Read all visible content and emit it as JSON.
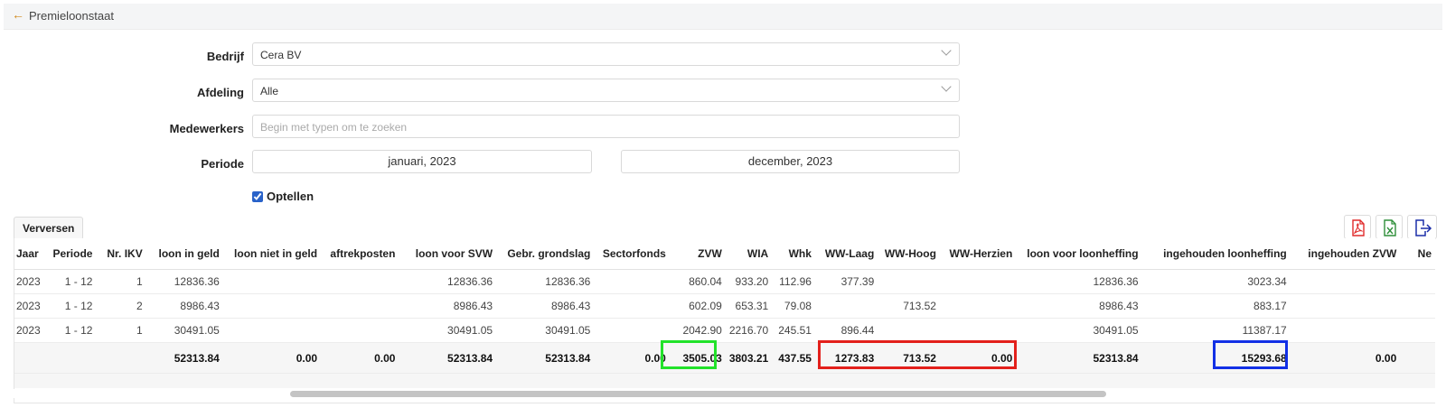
{
  "header": {
    "title": "Premieloonstaat"
  },
  "form": {
    "company_label": "Bedrijf",
    "company_value": "Cera BV",
    "department_label": "Afdeling",
    "department_value": "Alle",
    "employees_label": "Medewerkers",
    "employees_placeholder": "Begin met typen om te zoeken",
    "period_label": "Periode",
    "period_from": "januari, 2023",
    "period_to": "december, 2023",
    "sum_label": "Optellen",
    "sum_checked": true
  },
  "toolbar": {
    "refresh_label": "Verversen",
    "icons": [
      "pdf-export-icon",
      "excel-export-icon",
      "export-icon"
    ]
  },
  "table": {
    "columns": [
      "Jaar",
      "Periode",
      "Nr. IKV",
      "loon in geld",
      "loon niet in geld",
      "aftrekposten",
      "loon voor SVW",
      "Gebr. grondslag",
      "Sectorfonds",
      "ZVW",
      "WIA",
      "Whk",
      "WW-Laag",
      "WW-Hoog",
      "WW-Herzien",
      "loon voor loonheffing",
      "ingehouden loonheffing",
      "ingehouden ZVW",
      "Ne"
    ],
    "rows": [
      [
        "2023",
        "1 - 12",
        "1",
        "12836.36",
        "",
        "",
        "12836.36",
        "12836.36",
        "",
        "860.04",
        "933.20",
        "112.96",
        "377.39",
        "",
        "",
        "12836.36",
        "3023.34",
        "",
        ""
      ],
      [
        "2023",
        "1 - 12",
        "2",
        "8986.43",
        "",
        "",
        "8986.43",
        "8986.43",
        "",
        "602.09",
        "653.31",
        "79.08",
        "",
        "713.52",
        "",
        "8986.43",
        "883.17",
        "",
        ""
      ],
      [
        "2023",
        "1 - 12",
        "1",
        "30491.05",
        "",
        "",
        "30491.05",
        "30491.05",
        "",
        "2042.90",
        "2216.70",
        "245.51",
        "896.44",
        "",
        "",
        "30491.05",
        "11387.17",
        "",
        ""
      ]
    ],
    "totals": [
      "",
      "",
      "",
      "52313.84",
      "0.00",
      "0.00",
      "52313.84",
      "52313.84",
      "0.00",
      "3505.03",
      "3803.21",
      "437.55",
      "1273.83",
      "713.52",
      "0.00",
      "52313.84",
      "15293.68",
      "0.00",
      ""
    ]
  },
  "highlight_colors": {
    "green": "#22e22a",
    "red": "#e3201b",
    "blue": "#1230e6"
  }
}
